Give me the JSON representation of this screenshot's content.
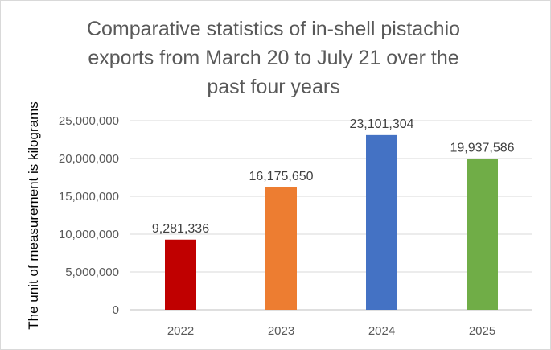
{
  "chart_data": {
    "type": "bar",
    "title_lines": [
      "Comparative statistics of in-shell pistachio",
      "exports from March 20 to July 21 over the",
      "past four years"
    ],
    "ylabel": "The unit of measurement is kilograms",
    "xlabel": "",
    "categories": [
      "2022",
      "2023",
      "2024",
      "2025"
    ],
    "values": [
      9281336,
      16175650,
      23101304,
      19937586
    ],
    "data_labels": [
      "9,281,336",
      "16,175,650",
      "23,101,304",
      "19,937,586"
    ],
    "colors": [
      "#C00000",
      "#ED7D31",
      "#4472C4",
      "#70AD47"
    ],
    "ylim": [
      0,
      25000000
    ],
    "yticks": [
      0,
      5000000,
      10000000,
      15000000,
      20000000,
      25000000
    ],
    "ytick_labels": [
      "0",
      "5,000,000",
      "10,000,000",
      "15,000,000",
      "20,000,000",
      "25,000,000"
    ],
    "grid": true,
    "legend": "none"
  }
}
